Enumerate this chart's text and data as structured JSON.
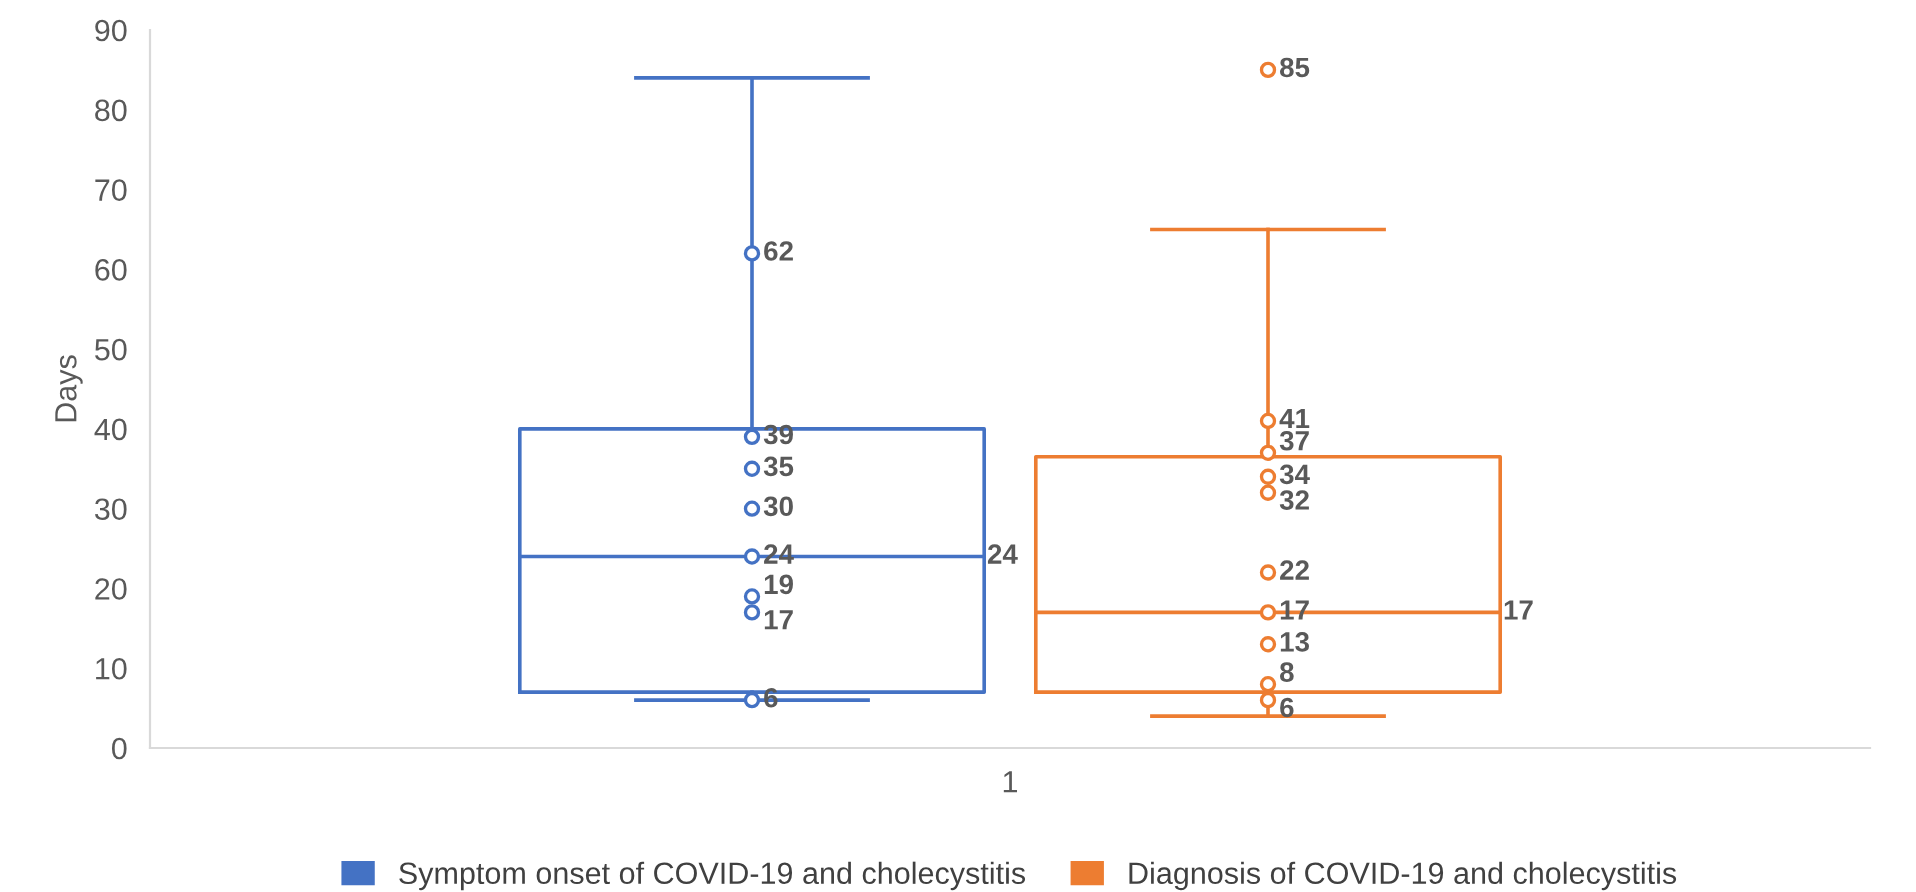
{
  "chart_data": {
    "type": "box",
    "ylabel": "Days",
    "categories": [
      "1"
    ],
    "ylim": [
      0,
      90
    ],
    "yticks": [
      0,
      10,
      20,
      30,
      40,
      50,
      60,
      70,
      80,
      90
    ],
    "grid": false,
    "legend": "bottom",
    "marker": "circle",
    "series": [
      {
        "name": "Symptom onset of COVID-19 and cholecystitis",
        "color": "#4472c4",
        "boxes": [
          {
            "low": 6,
            "q1": 7,
            "median": 24,
            "q3": 40,
            "high": 84
          }
        ],
        "value_labels": [
          "24"
        ]
      },
      {
        "name": "Diagnosis of COVID-19 and cholecystitis",
        "color": "#ed7d31",
        "boxes": [
          {
            "low": 4,
            "q1": 7,
            "median": 17,
            "q3": 36.5,
            "high": 65
          }
        ],
        "value_labels": [
          "17"
        ]
      },
      {
        "type": "scatter",
        "color": "#4472c4",
        "x": [
          "1",
          "1",
          "1",
          "1",
          "1",
          "1",
          "1",
          "1"
        ],
        "values": [
          62,
          39,
          35,
          30,
          24,
          19,
          17,
          6
        ],
        "value_labels": [
          "62",
          "39",
          "35",
          "30",
          "24",
          "19",
          "17",
          "6"
        ]
      },
      {
        "type": "scatter",
        "color": "#ed7d31",
        "x": [
          "1",
          "1",
          "1",
          "1",
          "1",
          "1",
          "1",
          "1",
          "1",
          "1"
        ],
        "values": [
          85,
          41,
          37,
          34,
          32,
          22,
          17,
          13,
          8,
          6
        ],
        "value_labels": [
          "85",
          "41",
          "37",
          "34",
          "32",
          "22",
          "17",
          "13",
          "8",
          "6"
        ]
      }
    ]
  }
}
